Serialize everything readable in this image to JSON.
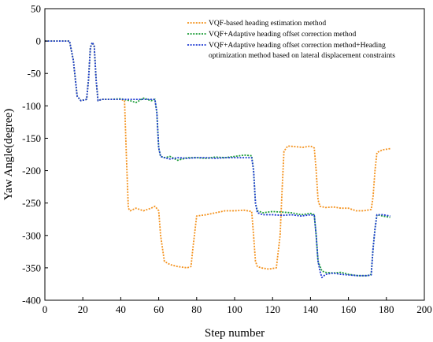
{
  "chart_data": {
    "type": "line",
    "title": "",
    "xlabel": "Step number",
    "ylabel": "Yaw Angle(degree)",
    "xlim": [
      0,
      200
    ],
    "ylim": [
      -400,
      50
    ],
    "xticks": [
      0,
      20,
      40,
      60,
      80,
      100,
      120,
      140,
      160,
      180,
      200
    ],
    "yticks": [
      50,
      0,
      -50,
      -100,
      -150,
      -200,
      -250,
      -300,
      -350,
      -400
    ],
    "grid": false,
    "legend_position": "top-right",
    "series": [
      {
        "name": "VQF-based heading estimation method",
        "color": "#f4921d",
        "style": "dotted",
        "x": [
          0,
          13,
          15,
          17,
          19,
          22,
          23,
          24,
          25,
          26,
          27,
          28,
          30,
          35,
          40,
          42,
          43,
          44,
          45,
          48,
          52,
          56,
          58,
          60,
          61,
          63,
          66,
          70,
          75,
          77,
          78,
          80,
          85,
          90,
          95,
          100,
          105,
          109,
          110,
          111,
          112,
          114,
          118,
          122,
          124,
          125,
          126,
          128,
          132,
          136,
          140,
          142,
          143,
          144,
          145,
          148,
          152,
          156,
          160,
          164,
          168,
          172,
          173,
          174,
          175,
          178,
          182
        ],
        "values": [
          0,
          0,
          -30,
          -85,
          -92,
          -90,
          -60,
          -10,
          -2,
          -8,
          -60,
          -92,
          -90,
          -90,
          -90,
          -92,
          -180,
          -258,
          -262,
          -258,
          -262,
          -258,
          -255,
          -262,
          -300,
          -340,
          -345,
          -348,
          -350,
          -348,
          -320,
          -270,
          -268,
          -265,
          -262,
          -262,
          -261,
          -263,
          -300,
          -340,
          -348,
          -350,
          -352,
          -350,
          -300,
          -230,
          -170,
          -162,
          -163,
          -164,
          -162,
          -165,
          -200,
          -245,
          -255,
          -257,
          -256,
          -258,
          -258,
          -262,
          -262,
          -260,
          -240,
          -200,
          -172,
          -168,
          -166
        ]
      },
      {
        "name": "VQF+Adaptive heading offset correction method",
        "color": "#1e9e3a",
        "style": "dotted",
        "x": [
          0,
          13,
          15,
          17,
          19,
          22,
          23,
          24,
          25,
          26,
          27,
          28,
          30,
          35,
          40,
          45,
          48,
          52,
          56,
          58,
          59,
          60,
          61,
          63,
          66,
          70,
          75,
          80,
          85,
          90,
          95,
          100,
          105,
          109,
          110,
          111,
          112,
          115,
          120,
          125,
          130,
          135,
          140,
          142,
          143,
          144,
          146,
          148,
          152,
          156,
          160,
          165,
          170,
          172,
          173,
          174,
          175,
          178,
          182
        ],
        "values": [
          0,
          0,
          -30,
          -85,
          -92,
          -90,
          -60,
          -10,
          -2,
          -8,
          -60,
          -92,
          -90,
          -90,
          -89,
          -92,
          -95,
          -88,
          -92,
          -90,
          -110,
          -165,
          -178,
          -180,
          -178,
          -184,
          -180,
          -180,
          -181,
          -179,
          -180,
          -178,
          -176,
          -177,
          -200,
          -250,
          -262,
          -265,
          -263,
          -264,
          -265,
          -268,
          -266,
          -268,
          -300,
          -340,
          -355,
          -357,
          -358,
          -357,
          -360,
          -362,
          -362,
          -360,
          -320,
          -290,
          -268,
          -270,
          -272
        ]
      },
      {
        "name": "VQF+Adaptive heading offset correction method+Heading optimization method based on lateral displacement constraints",
        "color": "#1f3bd4",
        "style": "dotted",
        "x": [
          0,
          13,
          15,
          17,
          19,
          22,
          23,
          24,
          25,
          26,
          27,
          28,
          30,
          35,
          40,
          45,
          50,
          55,
          58,
          59,
          60,
          61,
          63,
          66,
          70,
          75,
          80,
          85,
          90,
          95,
          100,
          105,
          109,
          110,
          111,
          112,
          115,
          120,
          125,
          130,
          135,
          140,
          142,
          143,
          144,
          145,
          146,
          148,
          152,
          156,
          160,
          165,
          170,
          172,
          173,
          174,
          175,
          178,
          182
        ],
        "values": [
          0,
          0,
          -30,
          -85,
          -92,
          -90,
          -60,
          -10,
          -2,
          -8,
          -60,
          -92,
          -90,
          -90,
          -90,
          -90,
          -90,
          -90,
          -90,
          -110,
          -165,
          -178,
          -180,
          -182,
          -180,
          -181,
          -180,
          -180,
          -181,
          -180,
          -180,
          -180,
          -180,
          -200,
          -250,
          -265,
          -268,
          -268,
          -269,
          -268,
          -270,
          -268,
          -269,
          -300,
          -340,
          -355,
          -365,
          -360,
          -358,
          -360,
          -361,
          -362,
          -362,
          -361,
          -320,
          -290,
          -268,
          -268,
          -270
        ]
      }
    ]
  }
}
